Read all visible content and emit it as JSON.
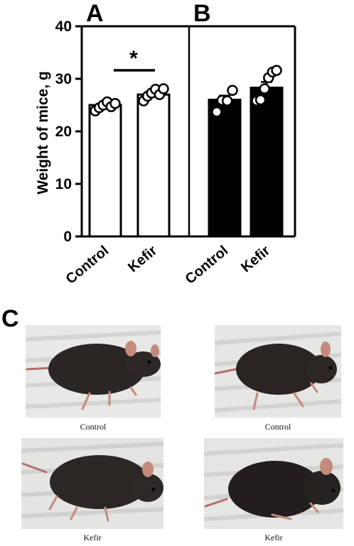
{
  "panel_labels": {
    "a": "A",
    "b": "B",
    "c": "C"
  },
  "chart_data": {
    "type": "bar",
    "ylabel": "Weight of mice, g",
    "ylim": [
      0,
      40
    ],
    "yticks": [
      "0",
      "10",
      "20",
      "30",
      "40"
    ],
    "grid": false,
    "panels": [
      {
        "label": "A",
        "categories": [
          "Control",
          "Kefir"
        ],
        "bar_fill": "#ffffff",
        "values": [
          25,
          27
        ],
        "errors": [
          0.4,
          0.6
        ],
        "points": [
          [
            23.9,
            24.5,
            25.0,
            25.6,
            24.7,
            25.3
          ],
          [
            25.8,
            26.7,
            27.3,
            28.0,
            27.0,
            28.1
          ]
        ],
        "significance": "*"
      },
      {
        "label": "B",
        "categories": [
          "Control",
          "Kefir"
        ],
        "bar_fill": "#000000",
        "values": [
          26,
          28.3
        ],
        "errors": [
          0.8,
          1.1
        ],
        "points": [
          [
            23.7,
            25.9,
            25.8,
            27.8
          ],
          [
            25.8,
            26.0,
            28.1,
            30.2,
            31.3,
            31.6
          ]
        ]
      }
    ]
  },
  "photos": [
    {
      "caption": "Control"
    },
    {
      "caption": "Control"
    },
    {
      "caption": "Kefir"
    },
    {
      "caption": "Kefir"
    }
  ]
}
